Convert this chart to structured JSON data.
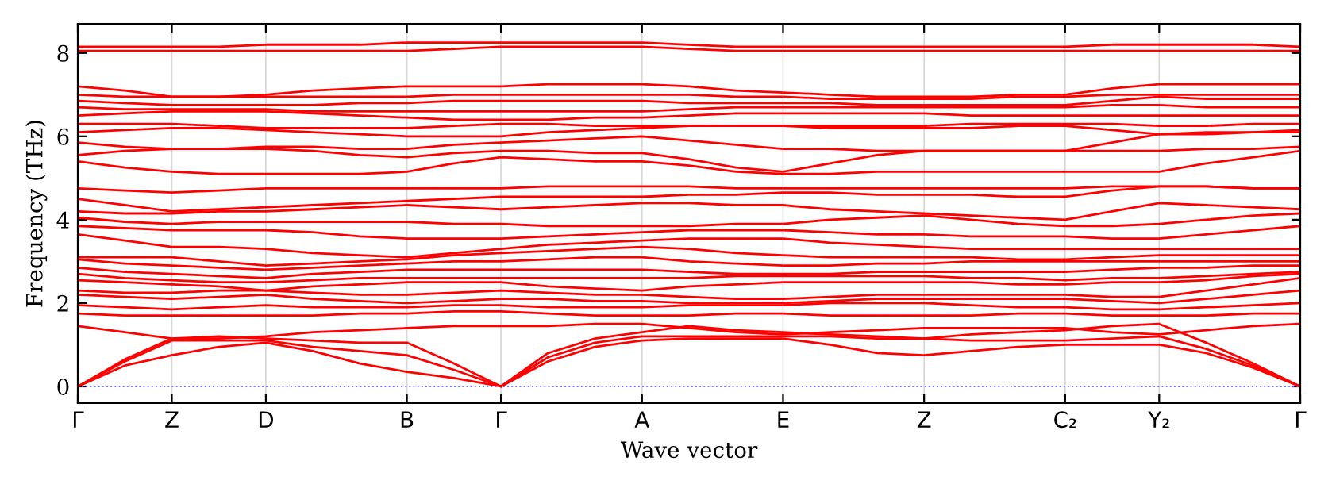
{
  "chart_data": {
    "type": "line",
    "xlabel": "Wave vector",
    "ylabel": "Frequency (THz)",
    "categories": [
      "Γ",
      null,
      "Z",
      null,
      "D",
      null,
      null,
      "B",
      null,
      "Γ",
      null,
      null,
      "A",
      null,
      null,
      "E",
      null,
      null,
      "Z",
      null,
      null,
      "C₂",
      null,
      "Y₂",
      null,
      null,
      "Γ"
    ],
    "ylim": [
      -0.4,
      8.7
    ],
    "yticks": [
      0,
      2,
      4,
      6,
      8
    ],
    "grid": "x",
    "marker": "none",
    "line_style": "solid",
    "ref_lines": [
      {
        "axis": "y",
        "value": 0,
        "color": "#7070ff",
        "line_style": "dotted"
      }
    ],
    "series": [
      {
        "color": "#ff0000",
        "values": [
          0,
          0.5,
          0.75,
          0.95,
          1.05,
          0.85,
          0.55,
          0.35,
          0.2,
          0,
          0.6,
          0.95,
          1.1,
          1.15,
          1.15,
          1.15,
          1.0,
          0.8,
          0.75,
          0.85,
          0.95,
          1.0,
          1.0,
          1.0,
          0.8,
          0.45,
          0
        ]
      },
      {
        "color": "#ff0000",
        "values": [
          0,
          0.6,
          1.1,
          1.1,
          1.1,
          0.95,
          0.85,
          0.75,
          0.4,
          0,
          0.7,
          1.05,
          1.2,
          1.2,
          1.2,
          1.2,
          1.2,
          1.15,
          1.15,
          1.1,
          1.1,
          1.1,
          1.15,
          1.2,
          0.9,
          0.5,
          0
        ]
      },
      {
        "color": "#ff0000",
        "values": [
          0,
          0.65,
          1.15,
          1.2,
          1.15,
          1.1,
          1.05,
          1.05,
          0.55,
          0,
          0.8,
          1.15,
          1.3,
          1.45,
          1.35,
          1.3,
          1.25,
          1.2,
          1.15,
          1.25,
          1.3,
          1.35,
          1.45,
          1.5,
          1.05,
          0.55,
          0
        ]
      },
      {
        "color": "#ff0000",
        "values": [
          1.45,
          1.3,
          1.15,
          1.15,
          1.2,
          1.3,
          1.35,
          1.4,
          1.45,
          1.45,
          1.45,
          1.5,
          1.5,
          1.4,
          1.3,
          1.25,
          1.3,
          1.35,
          1.4,
          1.4,
          1.4,
          1.4,
          1.3,
          1.25,
          1.35,
          1.45,
          1.5
        ]
      },
      {
        "color": "#ff0000",
        "values": [
          1.75,
          1.7,
          1.7,
          1.7,
          1.7,
          1.7,
          1.75,
          1.75,
          1.8,
          1.8,
          1.75,
          1.7,
          1.7,
          1.7,
          1.75,
          1.75,
          1.7,
          1.7,
          1.7,
          1.7,
          1.75,
          1.75,
          1.7,
          1.7,
          1.7,
          1.75,
          1.75
        ]
      },
      {
        "color": "#ff0000",
        "values": [
          1.95,
          1.9,
          1.85,
          1.9,
          1.95,
          1.9,
          1.9,
          1.9,
          1.95,
          1.95,
          1.9,
          1.9,
          1.9,
          1.95,
          1.95,
          1.95,
          2.0,
          2.0,
          2.0,
          1.95,
          1.9,
          1.9,
          1.85,
          1.85,
          1.9,
          1.95,
          2.0
        ]
      },
      {
        "color": "#ff0000",
        "values": [
          2.2,
          2.15,
          2.1,
          2.15,
          2.2,
          2.1,
          2.05,
          2.0,
          2.05,
          2.1,
          2.1,
          2.05,
          2.05,
          2.0,
          2.0,
          2.0,
          2.05,
          2.1,
          2.1,
          2.1,
          2.1,
          2.1,
          2.05,
          2.0,
          2.1,
          2.2,
          2.3
        ]
      },
      {
        "color": "#ff0000",
        "values": [
          2.3,
          2.25,
          2.25,
          2.3,
          2.3,
          2.25,
          2.2,
          2.2,
          2.25,
          2.3,
          2.25,
          2.2,
          2.2,
          2.15,
          2.1,
          2.1,
          2.15,
          2.2,
          2.2,
          2.2,
          2.2,
          2.2,
          2.15,
          2.15,
          2.3,
          2.45,
          2.6
        ]
      },
      {
        "color": "#ff0000",
        "values": [
          2.55,
          2.5,
          2.45,
          2.4,
          2.3,
          2.4,
          2.45,
          2.5,
          2.5,
          2.5,
          2.4,
          2.35,
          2.3,
          2.4,
          2.45,
          2.5,
          2.5,
          2.5,
          2.5,
          2.5,
          2.45,
          2.45,
          2.5,
          2.5,
          2.55,
          2.65,
          2.7
        ]
      },
      {
        "color": "#ff0000",
        "values": [
          2.7,
          2.6,
          2.55,
          2.5,
          2.5,
          2.55,
          2.6,
          2.6,
          2.6,
          2.6,
          2.6,
          2.6,
          2.6,
          2.6,
          2.65,
          2.65,
          2.65,
          2.65,
          2.65,
          2.6,
          2.6,
          2.55,
          2.6,
          2.6,
          2.65,
          2.7,
          2.75
        ]
      },
      {
        "color": "#ff0000",
        "values": [
          2.85,
          2.75,
          2.7,
          2.65,
          2.6,
          2.7,
          2.75,
          2.8,
          2.8,
          2.8,
          2.8,
          2.8,
          2.8,
          2.75,
          2.7,
          2.7,
          2.7,
          2.75,
          2.75,
          2.75,
          2.75,
          2.75,
          2.8,
          2.85,
          2.85,
          2.9,
          2.9
        ]
      },
      {
        "color": "#ff0000",
        "values": [
          3.05,
          2.95,
          2.9,
          2.85,
          2.8,
          2.85,
          2.9,
          2.95,
          3.0,
          3.0,
          3.05,
          3.1,
          3.1,
          3.0,
          2.95,
          2.9,
          2.9,
          2.95,
          2.95,
          3.0,
          3.0,
          3.0,
          3.0,
          3.0,
          3.0,
          3.0,
          3.0
        ]
      },
      {
        "color": "#ff0000",
        "values": [
          3.1,
          3.1,
          3.1,
          3.0,
          2.9,
          2.95,
          3.0,
          3.05,
          3.15,
          3.2,
          3.25,
          3.3,
          3.35,
          3.3,
          3.2,
          3.15,
          3.1,
          3.1,
          3.1,
          3.1,
          3.05,
          3.05,
          3.1,
          3.15,
          3.15,
          3.15,
          3.15
        ]
      },
      {
        "color": "#ff0000",
        "values": [
          3.65,
          3.5,
          3.35,
          3.35,
          3.3,
          3.2,
          3.15,
          3.1,
          3.2,
          3.3,
          3.4,
          3.45,
          3.5,
          3.55,
          3.55,
          3.55,
          3.45,
          3.4,
          3.35,
          3.3,
          3.3,
          3.3,
          3.3,
          3.3,
          3.3,
          3.3,
          3.3
        ]
      },
      {
        "color": "#ff0000",
        "values": [
          3.85,
          3.8,
          3.75,
          3.75,
          3.75,
          3.7,
          3.6,
          3.55,
          3.55,
          3.55,
          3.6,
          3.65,
          3.7,
          3.75,
          3.75,
          3.75,
          3.7,
          3.65,
          3.65,
          3.6,
          3.6,
          3.6,
          3.55,
          3.55,
          3.65,
          3.75,
          3.85
        ]
      },
      {
        "color": "#ff0000",
        "values": [
          4.05,
          3.95,
          3.9,
          3.95,
          3.95,
          3.95,
          3.95,
          3.95,
          3.9,
          3.9,
          3.85,
          3.85,
          3.85,
          3.85,
          3.9,
          3.9,
          4.0,
          4.05,
          4.1,
          4.0,
          3.9,
          3.85,
          3.85,
          3.9,
          4.0,
          4.1,
          4.15
        ]
      },
      {
        "color": "#ff0000",
        "values": [
          4.2,
          4.15,
          4.15,
          4.2,
          4.2,
          4.25,
          4.3,
          4.35,
          4.3,
          4.25,
          4.3,
          4.35,
          4.4,
          4.4,
          4.35,
          4.35,
          4.25,
          4.2,
          4.15,
          4.1,
          4.05,
          4.0,
          4.2,
          4.4,
          4.35,
          4.3,
          4.25
        ]
      },
      {
        "color": "#ff0000",
        "values": [
          4.5,
          4.35,
          4.2,
          4.25,
          4.3,
          4.35,
          4.4,
          4.45,
          4.5,
          4.55,
          4.55,
          4.55,
          4.55,
          4.6,
          4.6,
          4.65,
          4.65,
          4.6,
          4.6,
          4.6,
          4.55,
          4.55,
          4.7,
          4.8,
          4.8,
          4.75,
          4.75
        ]
      },
      {
        "color": "#ff0000",
        "values": [
          4.75,
          4.7,
          4.65,
          4.7,
          4.75,
          4.75,
          4.75,
          4.75,
          4.75,
          4.75,
          4.8,
          4.8,
          4.8,
          4.8,
          4.75,
          4.75,
          4.75,
          4.75,
          4.75,
          4.75,
          4.75,
          4.75,
          4.8,
          4.8,
          4.8,
          4.75,
          4.75
        ]
      },
      {
        "color": "#ff0000",
        "values": [
          5.4,
          5.25,
          5.15,
          5.1,
          5.1,
          5.1,
          5.1,
          5.15,
          5.35,
          5.5,
          5.45,
          5.4,
          5.4,
          5.3,
          5.15,
          5.1,
          5.1,
          5.15,
          5.15,
          5.15,
          5.15,
          5.15,
          5.15,
          5.15,
          5.35,
          5.5,
          5.65
        ]
      },
      {
        "color": "#ff0000",
        "values": [
          5.55,
          5.65,
          5.7,
          5.7,
          5.7,
          5.65,
          5.55,
          5.5,
          5.6,
          5.65,
          5.65,
          5.6,
          5.6,
          5.45,
          5.25,
          5.15,
          5.35,
          5.55,
          5.65,
          5.65,
          5.65,
          5.65,
          5.65,
          5.65,
          5.7,
          5.7,
          5.75
        ]
      },
      {
        "color": "#ff0000",
        "values": [
          5.85,
          5.75,
          5.7,
          5.7,
          5.75,
          5.75,
          5.7,
          5.7,
          5.8,
          5.85,
          5.9,
          5.95,
          6.0,
          5.9,
          5.8,
          5.7,
          5.7,
          5.65,
          5.65,
          5.65,
          5.65,
          5.65,
          5.85,
          6.05,
          6.05,
          6.1,
          6.1
        ]
      },
      {
        "color": "#ff0000",
        "values": [
          6.1,
          6.15,
          6.2,
          6.2,
          6.15,
          6.1,
          6.05,
          6.0,
          6.0,
          6.0,
          6.1,
          6.15,
          6.2,
          6.25,
          6.25,
          6.25,
          6.2,
          6.2,
          6.2,
          6.2,
          6.25,
          6.25,
          6.15,
          6.05,
          6.1,
          6.1,
          6.15
        ]
      },
      {
        "color": "#ff0000",
        "values": [
          6.3,
          6.3,
          6.3,
          6.25,
          6.2,
          6.2,
          6.2,
          6.2,
          6.25,
          6.3,
          6.3,
          6.25,
          6.25,
          6.25,
          6.25,
          6.25,
          6.25,
          6.25,
          6.25,
          6.3,
          6.3,
          6.3,
          6.3,
          6.25,
          6.25,
          6.3,
          6.3
        ]
      },
      {
        "color": "#ff0000",
        "values": [
          6.5,
          6.55,
          6.6,
          6.6,
          6.6,
          6.55,
          6.5,
          6.45,
          6.4,
          6.4,
          6.4,
          6.45,
          6.45,
          6.5,
          6.55,
          6.55,
          6.55,
          6.55,
          6.55,
          6.5,
          6.5,
          6.5,
          6.5,
          6.5,
          6.5,
          6.5,
          6.5
        ]
      },
      {
        "color": "#ff0000",
        "values": [
          6.7,
          6.65,
          6.65,
          6.65,
          6.65,
          6.6,
          6.6,
          6.6,
          6.6,
          6.6,
          6.6,
          6.6,
          6.6,
          6.65,
          6.7,
          6.7,
          6.7,
          6.7,
          6.7,
          6.7,
          6.7,
          6.7,
          6.75,
          6.75,
          6.7,
          6.7,
          6.7
        ]
      },
      {
        "color": "#ff0000",
        "values": [
          6.85,
          6.8,
          6.75,
          6.75,
          6.75,
          6.75,
          6.8,
          6.8,
          6.85,
          6.85,
          6.85,
          6.85,
          6.85,
          6.8,
          6.8,
          6.8,
          6.8,
          6.75,
          6.75,
          6.75,
          6.75,
          6.75,
          6.85,
          6.95,
          6.9,
          6.9,
          6.9
        ]
      },
      {
        "color": "#ff0000",
        "values": [
          7.0,
          6.95,
          6.95,
          6.95,
          6.95,
          6.95,
          6.95,
          6.95,
          7.0,
          7.0,
          7.0,
          7.0,
          7.0,
          7.0,
          6.95,
          6.95,
          6.9,
          6.9,
          6.9,
          6.9,
          6.95,
          6.95,
          7.0,
          7.0,
          7.0,
          7.0,
          7.0
        ]
      },
      {
        "color": "#ff0000",
        "values": [
          7.2,
          7.1,
          6.95,
          6.95,
          7.0,
          7.1,
          7.15,
          7.2,
          7.2,
          7.2,
          7.25,
          7.25,
          7.25,
          7.2,
          7.1,
          7.05,
          7.0,
          6.95,
          6.95,
          6.95,
          7.0,
          7.0,
          7.15,
          7.25,
          7.25,
          7.25,
          7.25
        ]
      },
      {
        "color": "#ff0000",
        "values": [
          8.05,
          8.05,
          8.05,
          8.05,
          8.05,
          8.05,
          8.05,
          8.05,
          8.1,
          8.15,
          8.15,
          8.15,
          8.15,
          8.1,
          8.05,
          8.05,
          8.05,
          8.05,
          8.05,
          8.05,
          8.05,
          8.05,
          8.05,
          8.05,
          8.05,
          8.05,
          8.05
        ]
      },
      {
        "color": "#ff0000",
        "values": [
          8.15,
          8.15,
          8.15,
          8.15,
          8.2,
          8.2,
          8.2,
          8.25,
          8.25,
          8.25,
          8.25,
          8.25,
          8.25,
          8.2,
          8.15,
          8.15,
          8.15,
          8.15,
          8.15,
          8.15,
          8.15,
          8.15,
          8.2,
          8.2,
          8.2,
          8.2,
          8.15
        ]
      }
    ]
  }
}
